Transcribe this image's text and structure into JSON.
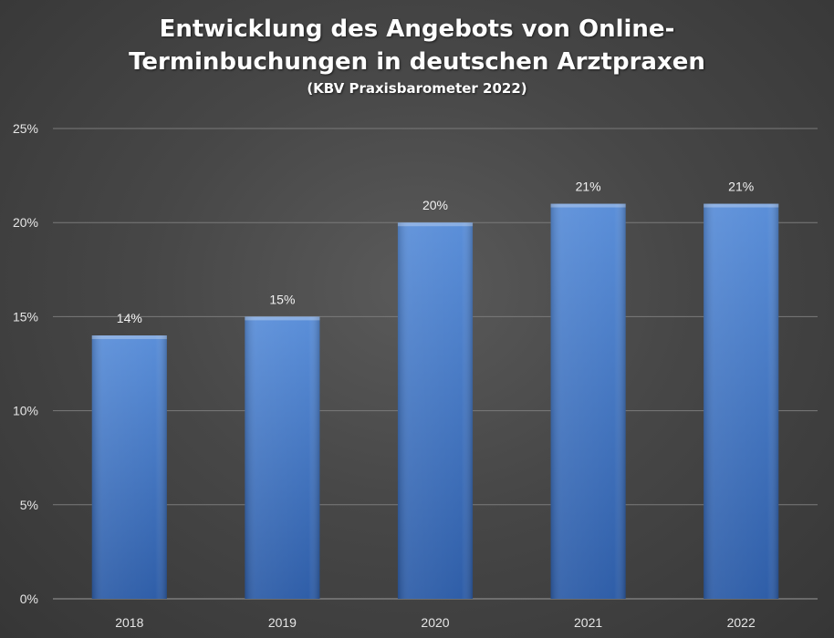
{
  "chart_data": {
    "type": "bar",
    "title_line1": "Entwicklung des Angebots von Online-",
    "title_line2": "Terminbuchungen in deutschen Arztpraxen",
    "subtitle": "(KBV Praxisbarometer 2022)",
    "categories": [
      "2018",
      "2019",
      "2020",
      "2021",
      "2022"
    ],
    "values": [
      14,
      15,
      20,
      21,
      21
    ],
    "data_labels": [
      "14%",
      "15%",
      "20%",
      "21%",
      "21%"
    ],
    "y_ticks": [
      0,
      5,
      10,
      15,
      20,
      25
    ],
    "y_tick_labels": [
      "0%",
      "5%",
      "10%",
      "15%",
      "20%",
      "25%"
    ],
    "ylim": [
      0,
      25
    ],
    "grid": true,
    "legend": "none",
    "xlabel": "",
    "ylabel": "",
    "colors": {
      "bar_top": "#5b8fd9",
      "bar_bottom": "#2f5ea8",
      "grid": "#7a7a7a"
    }
  }
}
